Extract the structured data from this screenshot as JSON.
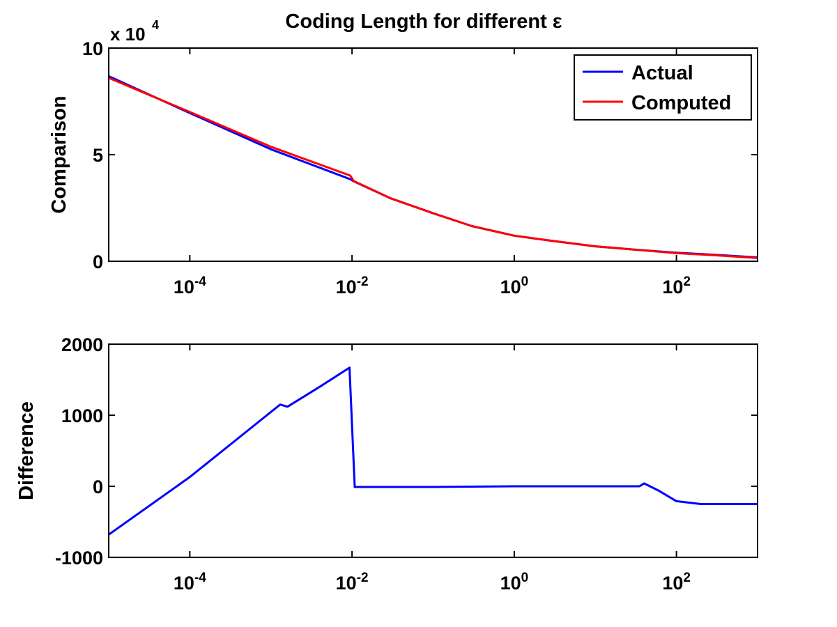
{
  "chart_data": [
    {
      "type": "line",
      "title": "Coding Length for different ε",
      "xlabel": "",
      "ylabel": "Comparison",
      "y_multiplier_base": "x 10",
      "y_multiplier_exp": "4",
      "x_scale": "log",
      "xlim": [
        1e-05,
        1000
      ],
      "ylim": [
        0,
        10
      ],
      "x_ticks": [
        0.0001,
        0.01,
        1,
        100
      ],
      "x_tick_labels": [
        {
          "base": "10",
          "exp": "-4"
        },
        {
          "base": "10",
          "exp": "-2"
        },
        {
          "base": "10",
          "exp": "0"
        },
        {
          "base": "10",
          "exp": "2"
        }
      ],
      "y_ticks": [
        0,
        5,
        10
      ],
      "y_tick_labels": [
        "0",
        "5",
        "10"
      ],
      "legend": {
        "placement": "top-right",
        "entries": [
          "Actual",
          "Computed"
        ]
      },
      "series": [
        {
          "name": "Actual",
          "color": "#0000ff",
          "x": [
            1e-05,
            0.0001,
            0.001,
            0.0095,
            0.0105,
            0.03,
            0.1,
            0.3,
            1,
            3,
            10,
            30,
            100,
            300,
            1000
          ],
          "y": [
            8.68,
            6.95,
            5.25,
            3.85,
            3.75,
            2.95,
            2.25,
            1.65,
            1.2,
            0.95,
            0.7,
            0.55,
            0.4,
            0.3,
            0.18
          ]
        },
        {
          "name": "Computed",
          "color": "#ff0000",
          "x": [
            1e-05,
            0.0001,
            0.001,
            0.0095,
            0.0105,
            0.03,
            0.1,
            0.3,
            1,
            3,
            10,
            30,
            100,
            300,
            1000
          ],
          "y": [
            8.6,
            7.0,
            5.37,
            4.02,
            3.76,
            2.95,
            2.25,
            1.65,
            1.2,
            0.95,
            0.7,
            0.55,
            0.38,
            0.28,
            0.15
          ]
        }
      ]
    },
    {
      "type": "line",
      "title": "",
      "xlabel": "",
      "ylabel": "Difference",
      "x_scale": "log",
      "xlim": [
        1e-05,
        1000
      ],
      "ylim": [
        -1000,
        2000
      ],
      "x_ticks": [
        0.0001,
        0.01,
        1,
        100
      ],
      "x_tick_labels": [
        {
          "base": "10",
          "exp": "-4"
        },
        {
          "base": "10",
          "exp": "-2"
        },
        {
          "base": "10",
          "exp": "0"
        },
        {
          "base": "10",
          "exp": "2"
        }
      ],
      "y_ticks": [
        -1000,
        0,
        1000,
        2000
      ],
      "y_tick_labels": [
        "-1000",
        "0",
        "1000",
        "2000"
      ],
      "series": [
        {
          "color": "#0000ff",
          "x": [
            1e-05,
            0.0001,
            0.0013,
            0.0016,
            0.004,
            0.0093,
            0.0108,
            0.1,
            1,
            35,
            40,
            60,
            100,
            200,
            1000
          ],
          "y": [
            -680,
            130,
            1150,
            1120,
            1400,
            1670,
            -10,
            -10,
            0,
            0,
            40,
            -60,
            -210,
            -250,
            -250
          ]
        }
      ]
    }
  ]
}
